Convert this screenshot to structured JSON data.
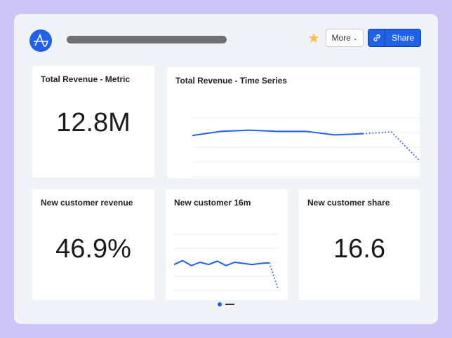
{
  "header": {
    "logo": "amplitude-logo",
    "more_label": "More",
    "share_label": "Share",
    "star_icon": "star-icon",
    "accent": "#1f62e8"
  },
  "cards": [
    {
      "title": "Total Revenue - Metric",
      "value": "12.8M"
    },
    {
      "title": "Total Revenue - Time Series"
    },
    {
      "title": "New customer revenue",
      "value": "46.9%"
    },
    {
      "title": "New customer 16m"
    },
    {
      "title": "New customer share",
      "value": "16.6"
    }
  ],
  "chart_data": [
    {
      "type": "line",
      "title": "Total Revenue - Time Series",
      "values": [
        70,
        77,
        79,
        77,
        77,
        71,
        73
      ],
      "projected": [
        73,
        76,
        27
      ],
      "grid": true
    },
    {
      "type": "line",
      "title": "New customer 16m",
      "values": [
        46,
        53,
        44,
        50,
        46,
        52,
        44,
        50,
        48,
        46,
        48,
        49
      ],
      "projected": [
        49,
        3
      ],
      "grid": true,
      "pagination": {
        "pages": 2,
        "current": 1
      }
    }
  ]
}
